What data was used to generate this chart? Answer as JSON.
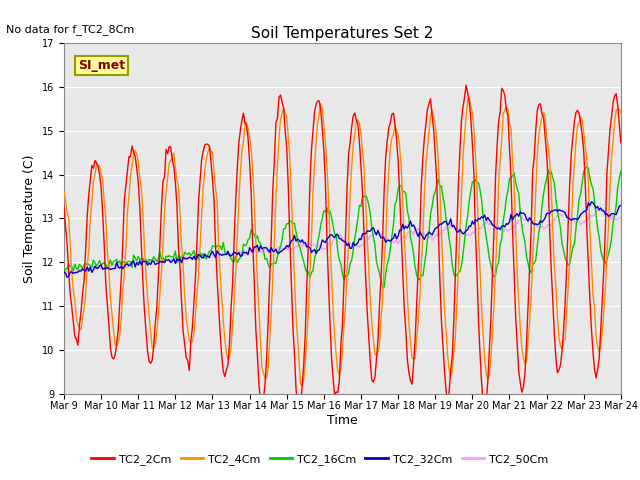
{
  "title": "Soil Temperatures Set 2",
  "subtitle": "No data for f_TC2_8Cm",
  "xlabel": "Time",
  "ylabel": "Soil Temperature (C)",
  "ylim": [
    9.0,
    17.0
  ],
  "yticks": [
    9.0,
    10.0,
    11.0,
    12.0,
    13.0,
    14.0,
    15.0,
    16.0,
    17.0
  ],
  "xlim": [
    0,
    360
  ],
  "xtick_labels": [
    "Mar 9",
    "Mar 10",
    "Mar 11",
    "Mar 12",
    "Mar 13",
    "Mar 14",
    "Mar 15",
    "Mar 16",
    "Mar 17",
    "Mar 18",
    "Mar 19",
    "Mar 20",
    "Mar 21",
    "Mar 22",
    "Mar 23",
    "Mar 24"
  ],
  "xtick_positions": [
    0,
    24,
    48,
    72,
    96,
    120,
    144,
    168,
    192,
    216,
    240,
    264,
    288,
    312,
    336,
    360
  ],
  "annotation_text": "SI_met",
  "annotation_color": "#8B0000",
  "annotation_bg": "#FFFF99",
  "annotation_edge": "#999900",
  "series_colors": [
    "#FF0000",
    "#FF8C00",
    "#00CC00",
    "#0000CC",
    "#FF99FF"
  ],
  "series_labels": [
    "TC2_2Cm",
    "TC2_4Cm",
    "TC2_16Cm",
    "TC2_32Cm",
    "TC2_50Cm"
  ],
  "plot_bg": "#E8E8E8",
  "grid_color": "#FFFFFF",
  "title_fontsize": 11,
  "subtitle_fontsize": 8,
  "tick_fontsize": 7,
  "ylabel_fontsize": 9,
  "xlabel_fontsize": 9,
  "legend_fontsize": 8,
  "linewidth": 1.0
}
